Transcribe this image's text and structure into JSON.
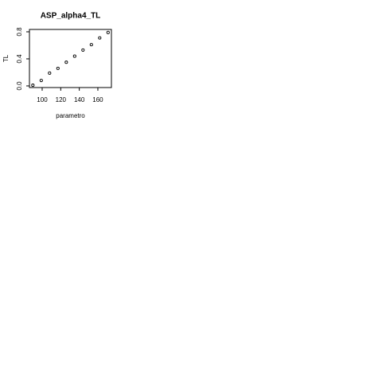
{
  "chart_data": {
    "type": "scatter",
    "title": "ASP_alpha4_TL",
    "x_label": "parametro",
    "y_label": "TL",
    "series": [
      {
        "color": "#000000",
        "x": [
          90,
          99,
          108,
          117,
          126,
          135,
          144,
          153,
          162,
          171
        ],
        "values": [
          0.01,
          0.08,
          0.19,
          0.26,
          0.35,
          0.44,
          0.53,
          0.61,
          0.71,
          0.79
        ]
      }
    ],
    "xlim": [
      86.3,
      174.6
    ],
    "xticks": [
      100,
      120,
      140,
      160
    ],
    "ylim": [
      -0.024,
      0.835
    ],
    "yticks": [
      {
        "value": 0,
        "label": "0.0"
      },
      0.4,
      0.8
    ]
  }
}
